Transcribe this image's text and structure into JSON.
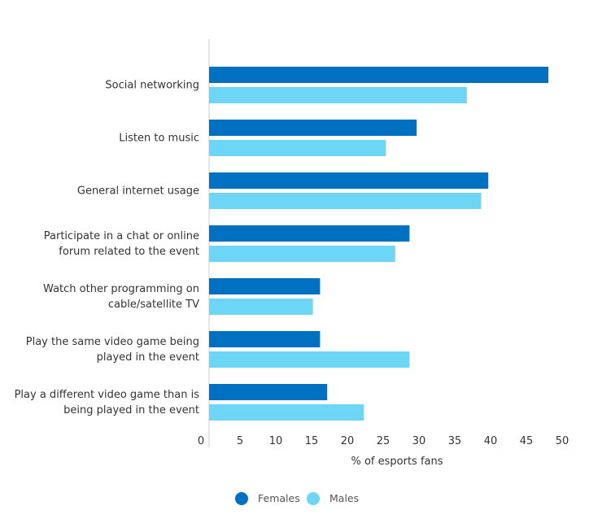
{
  "chart_data": {
    "type": "bar",
    "orientation": "horizontal",
    "title": "",
    "xlabel": "% of esports fans",
    "ylabel": "",
    "xlim": [
      0,
      50
    ],
    "xticks": [
      0,
      5,
      10,
      15,
      20,
      25,
      30,
      35,
      40,
      45,
      50
    ],
    "grid": false,
    "legend_position": "bottom",
    "categories": [
      [
        "Social networking"
      ],
      [
        "Listen to music"
      ],
      [
        "General internet usage"
      ],
      [
        "Participate in a chat or online",
        "forum related to the event"
      ],
      [
        "Watch other programming on",
        "cable/satellite TV"
      ],
      [
        "Play the same video game being",
        "played in the event"
      ],
      [
        "Play a different video game than is",
        "being played in the event"
      ]
    ],
    "series": [
      {
        "name": "Females",
        "color": "#0070c0",
        "values": [
          47.4,
          29,
          39,
          28,
          15.5,
          15.5,
          16.5
        ]
      },
      {
        "name": "Males",
        "color": "#6dd5f5",
        "values": [
          36,
          24.7,
          38,
          26,
          14.5,
          28,
          21.6
        ]
      }
    ]
  }
}
